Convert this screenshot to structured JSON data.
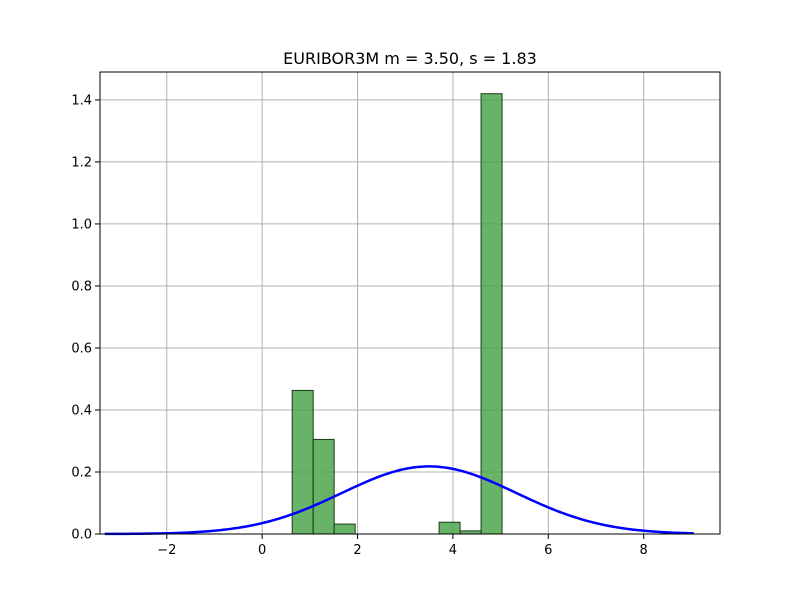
{
  "chart_data": {
    "type": "bar",
    "title": "EURIBOR3M  m = 3.50,  s = 1.83",
    "xlabel": "",
    "ylabel": "",
    "xlim": [
      -3.4,
      9.6
    ],
    "ylim": [
      0,
      1.49
    ],
    "grid": true,
    "x_ticks": [
      -2,
      0,
      2,
      4,
      6,
      8
    ],
    "x_tick_labels": [
      "−2",
      "0",
      "2",
      "4",
      "6",
      "8"
    ],
    "y_ticks": [
      0.0,
      0.2,
      0.4,
      0.6,
      0.8,
      1.0,
      1.2,
      1.4
    ],
    "y_tick_labels": [
      "0.0",
      "0.2",
      "0.4",
      "0.6",
      "0.8",
      "1.0",
      "1.2",
      "1.4"
    ],
    "histogram": {
      "bin_edges": [
        0.63,
        1.07,
        1.51,
        1.95,
        2.39,
        2.83,
        3.27,
        3.71,
        4.15,
        4.59,
        5.03
      ],
      "values": [
        0.463,
        0.305,
        0.032,
        0,
        0,
        0,
        0,
        0.038,
        0.01,
        1.42
      ],
      "color": "#4ca64c",
      "edge_color": "#1a3a1a"
    },
    "series": [
      {
        "type": "line",
        "mean": 3.5,
        "std": 1.83,
        "x_range": [
          -3.3,
          9.05
        ],
        "color": "#0000ff"
      }
    ]
  }
}
